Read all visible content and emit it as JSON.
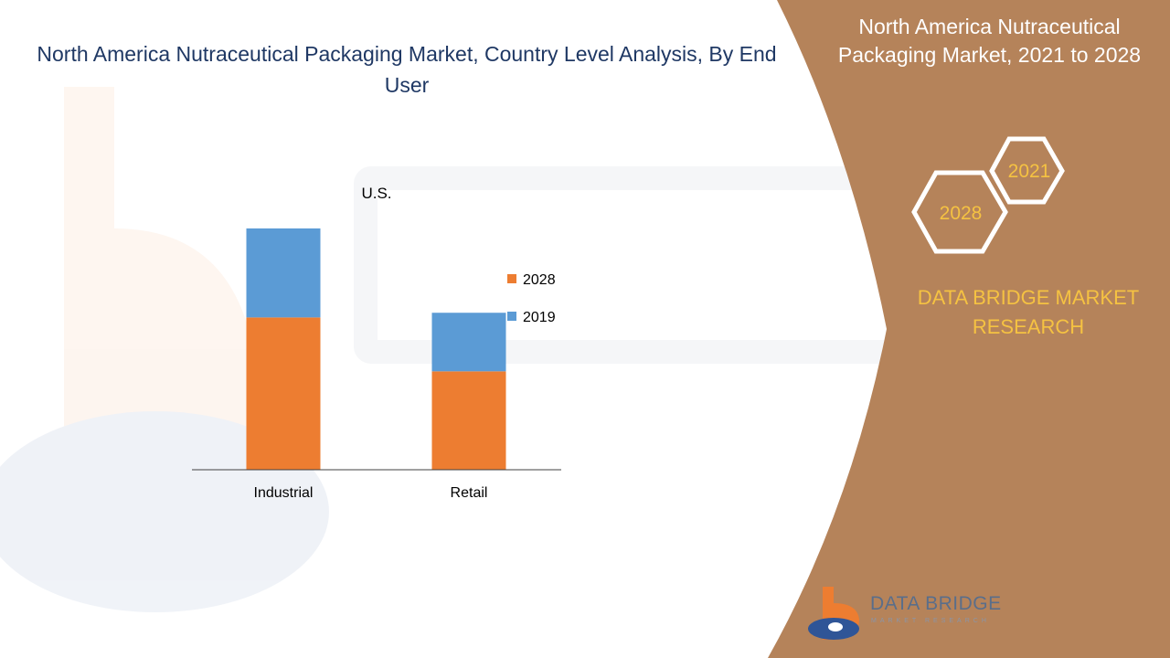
{
  "main_title": "North America Nutraceutical  Packaging Market, Country Level Analysis, By End User",
  "side_panel": {
    "title": "North America Nutraceutical Packaging Market, 2021 to 2028",
    "hex_labels": [
      "2021",
      "2028"
    ],
    "brand": "DATA BRIDGE MARKET RESEARCH"
  },
  "logo": {
    "name": "DATA BRIDGE",
    "tagline": "MARKET RESEARCH"
  },
  "colors": {
    "panel": "#b5835a",
    "accent": "#f5c242",
    "title": "#1f3864",
    "series_2028": "#ed7d31",
    "series_2019": "#5b9bd5"
  },
  "chart_data": {
    "type": "bar",
    "stacked": true,
    "title": "U.S.",
    "categories": [
      "Industrial",
      "Retail"
    ],
    "series": [
      {
        "name": "2028",
        "color": "#ed7d31",
        "values": [
          65,
          42
        ]
      },
      {
        "name": "2019",
        "color": "#5b9bd5",
        "values": [
          38,
          25
        ]
      }
    ],
    "ylim": [
      0,
      110
    ],
    "xlabel": "",
    "ylabel": "",
    "grid": false,
    "legend_position": "right"
  }
}
